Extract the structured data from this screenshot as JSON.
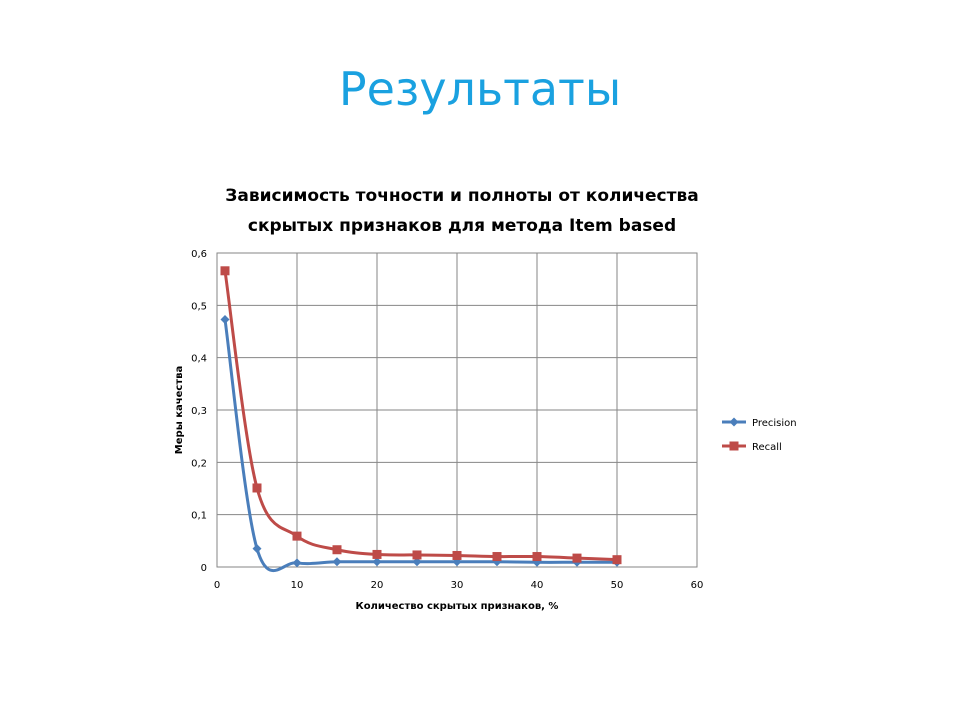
{
  "slide": {
    "title": "Результаты"
  },
  "colors": {
    "title": "#1aa1e0",
    "precision": "#4a7ebb",
    "recall": "#be4b48",
    "grid": "#868686"
  },
  "chart_data": {
    "type": "line",
    "title_lines": [
      "Зависимость точности и полноты  от количества",
      "скрытых признаков для метода Item based"
    ],
    "xlabel": "Количество  скрытых  признаков,  %",
    "ylabel": "Меры качества",
    "xlim": [
      0,
      60
    ],
    "ylim": [
      0,
      0.6
    ],
    "x_ticks": [
      0,
      10,
      20,
      30,
      40,
      50,
      60
    ],
    "x_tick_labels": [
      "0",
      "10",
      "20",
      "30",
      "40",
      "50",
      "60"
    ],
    "y_ticks": [
      0,
      0.1,
      0.2,
      0.3,
      0.4,
      0.5,
      0.6
    ],
    "y_tick_labels": [
      "0",
      "0,1",
      "0,2",
      "0,3",
      "0,4",
      "0,5",
      "0,6"
    ],
    "grid": true,
    "legend_position": "right",
    "smooth": true,
    "series": [
      {
        "name": "Precision",
        "marker": "diamond",
        "color": "#4a7ebb",
        "x": [
          1,
          5,
          10,
          15,
          20,
          25,
          30,
          35,
          40,
          45,
          50
        ],
        "y": [
          0.473,
          0.035,
          0.008,
          0.01,
          0.01,
          0.01,
          0.01,
          0.01,
          0.009,
          0.009,
          0.009
        ]
      },
      {
        "name": "Recall",
        "marker": "square",
        "color": "#be4b48",
        "x": [
          1,
          5,
          10,
          15,
          20,
          25,
          30,
          35,
          40,
          45,
          50
        ],
        "y": [
          0.566,
          0.151,
          0.059,
          0.033,
          0.024,
          0.023,
          0.022,
          0.02,
          0.02,
          0.017,
          0.014
        ]
      }
    ]
  }
}
